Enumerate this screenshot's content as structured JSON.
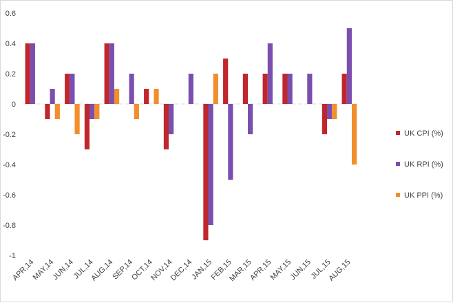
{
  "chart_data": {
    "type": "bar",
    "title": "",
    "xlabel": "",
    "ylabel": "",
    "ylim": [
      -1,
      0.6
    ],
    "yticks": [
      {
        "value": 0.6,
        "label": "0.6"
      },
      {
        "value": 0.4,
        "label": "0.4"
      },
      {
        "value": 0.2,
        "label": "0.2"
      },
      {
        "value": 0,
        "label": "0"
      },
      {
        "value": -0.2,
        "label": "-0.2"
      },
      {
        "value": -0.4,
        "label": "-0.4"
      },
      {
        "value": -0.6,
        "label": "-0.6"
      },
      {
        "value": -0.8,
        "label": "-0.8"
      },
      {
        "value": -1,
        "label": "-1"
      }
    ],
    "grid": false,
    "legend_position": "right",
    "categories": [
      "APR,14",
      "MAY,14",
      "JUN,14",
      "JUL,14",
      "AUG,14",
      "SEP,14",
      "OCT,14",
      "NOV,14",
      "DEC,14",
      "JAN,15",
      "FEB,15",
      "MAR,15",
      "APR,15",
      "MAY,15",
      "JUN,15",
      "JUL,15",
      "AUG,15"
    ],
    "series": [
      {
        "name": "UK CPI (%)",
        "color": "#c0272d",
        "values": [
          0.4,
          -0.1,
          0.2,
          -0.3,
          0.4,
          0,
          0.1,
          -0.3,
          0,
          -0.9,
          0.3,
          0.2,
          0.2,
          0.2,
          0,
          -0.2,
          0.2
        ]
      },
      {
        "name": "UK RPI (%)",
        "color": "#7a4fb0",
        "values": [
          0.4,
          0.1,
          0.2,
          -0.1,
          0.4,
          0.2,
          0,
          -0.2,
          0.2,
          -0.8,
          -0.5,
          -0.2,
          0.4,
          0.2,
          0.2,
          -0.1,
          0.5
        ]
      },
      {
        "name": "UK PPI (%)",
        "color": "#f28e2b",
        "values": [
          0,
          -0.1,
          -0.2,
          -0.1,
          0.1,
          -0.1,
          0.1,
          0,
          0,
          0.2,
          0,
          0,
          0,
          0,
          0,
          -0.1,
          -0.4
        ]
      }
    ]
  }
}
